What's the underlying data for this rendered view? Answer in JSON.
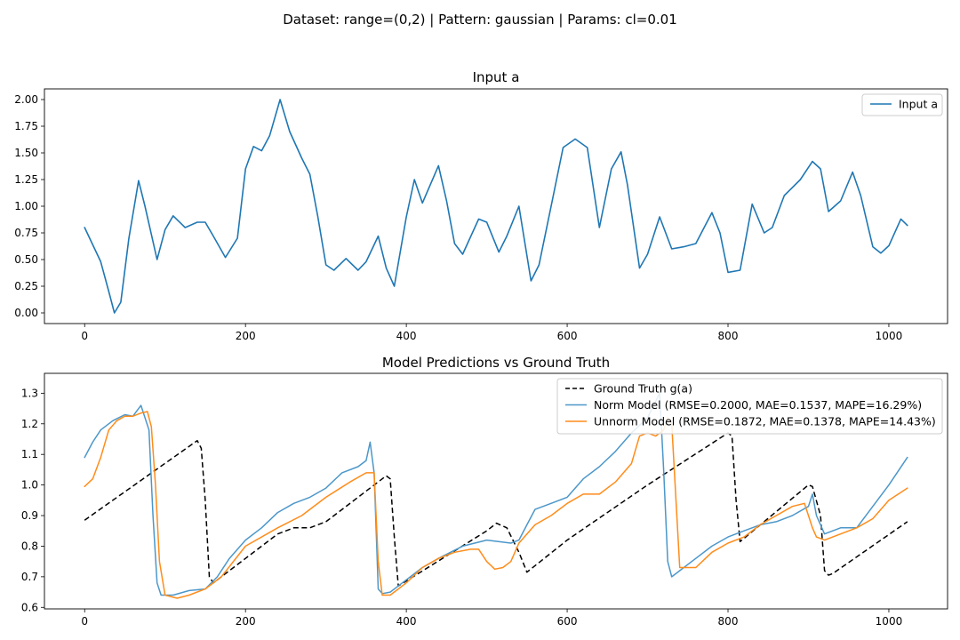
{
  "suptitle": "Dataset: range=(0,2) | Pattern: gaussian | Params: cl=0.01",
  "colors": {
    "blue": "#1f77b4",
    "steelblue": "#4c97c9",
    "orange": "#ff8c1a",
    "black": "#000000"
  },
  "chart_data": [
    {
      "type": "line",
      "title": "Input a",
      "xlabel": "",
      "ylabel": "",
      "xlim": [
        -50,
        1073
      ],
      "ylim": [
        -0.1,
        2.1
      ],
      "xticks": [
        0,
        200,
        400,
        600,
        800,
        1000
      ],
      "yticks": [
        "0.00",
        "0.25",
        "0.50",
        "0.75",
        "1.00",
        "1.25",
        "1.50",
        "1.75",
        "2.00"
      ],
      "legend": {
        "position": "top-right",
        "entries": [
          "Input a"
        ]
      },
      "series": [
        {
          "name": "Input a",
          "color": "#1f77b4",
          "style": "solid",
          "x": [
            0,
            20,
            30,
            37,
            45,
            55,
            67,
            75,
            90,
            100,
            110,
            125,
            140,
            150,
            160,
            175,
            190,
            200,
            210,
            220,
            230,
            243,
            255,
            270,
            280,
            290,
            300,
            310,
            325,
            340,
            350,
            365,
            375,
            385,
            400,
            410,
            420,
            440,
            450,
            460,
            470,
            490,
            500,
            515,
            525,
            540,
            555,
            565,
            580,
            595,
            610,
            625,
            640,
            655,
            667,
            675,
            690,
            700,
            715,
            730,
            745,
            760,
            780,
            790,
            800,
            815,
            830,
            845,
            855,
            870,
            890,
            905,
            915,
            925,
            940,
            955,
            965,
            980,
            990,
            1000,
            1015,
            1023
          ],
          "y": [
            0.8,
            0.48,
            0.2,
            0.0,
            0.1,
            0.7,
            1.24,
            1.0,
            0.5,
            0.78,
            0.91,
            0.8,
            0.85,
            0.85,
            0.72,
            0.52,
            0.7,
            1.35,
            1.56,
            1.52,
            1.66,
            2.0,
            1.7,
            1.45,
            1.3,
            0.9,
            0.45,
            0.4,
            0.51,
            0.4,
            0.48,
            0.72,
            0.42,
            0.25,
            0.9,
            1.25,
            1.03,
            1.38,
            1.05,
            0.65,
            0.55,
            0.88,
            0.85,
            0.57,
            0.72,
            1.0,
            0.3,
            0.45,
            1.0,
            1.55,
            1.63,
            1.55,
            0.8,
            1.35,
            1.51,
            1.2,
            0.42,
            0.55,
            0.9,
            0.6,
            0.62,
            0.65,
            0.94,
            0.75,
            0.38,
            0.4,
            1.02,
            0.75,
            0.8,
            1.1,
            1.25,
            1.42,
            1.35,
            0.95,
            1.05,
            1.32,
            1.1,
            0.62,
            0.56,
            0.63,
            0.88,
            0.82
          ]
        }
      ]
    },
    {
      "type": "line",
      "title": "Model Predictions vs Ground Truth",
      "xlabel": "",
      "ylabel": "",
      "xlim": [
        -50,
        1073
      ],
      "ylim": [
        0.595,
        1.365
      ],
      "xticks": [
        0,
        200,
        400,
        600,
        800,
        1000
      ],
      "yticks": [
        "0.6",
        "0.7",
        "0.8",
        "0.9",
        "1.0",
        "1.1",
        "1.2",
        "1.3"
      ],
      "legend": {
        "position": "top-right",
        "entries": [
          "Ground Truth g(a)",
          "Norm Model (RMSE=0.2000, MAE=0.1537, MAPE=16.29%)",
          "Unnorm Model (RMSE=0.1872, MAE=0.1378, MAPE=14.43%)"
        ]
      },
      "series": [
        {
          "name": "Ground Truth g(a)",
          "color": "#000000",
          "style": "dashed",
          "x": [
            0,
            140,
            145,
            150,
            155,
            160,
            200,
            240,
            260,
            280,
            300,
            375,
            380,
            385,
            390,
            500,
            512,
            525,
            540,
            550,
            600,
            700,
            800,
            805,
            810,
            815,
            900,
            905,
            915,
            920,
            925,
            930,
            1023
          ],
          "y": [
            0.885,
            1.145,
            1.12,
            0.95,
            0.7,
            0.68,
            0.76,
            0.84,
            0.86,
            0.86,
            0.88,
            1.03,
            1.02,
            0.83,
            0.67,
            0.85,
            0.875,
            0.86,
            0.78,
            0.715,
            0.82,
            1.0,
            1.17,
            1.16,
            0.95,
            0.815,
            1.0,
            0.995,
            0.9,
            0.72,
            0.705,
            0.71,
            0.88
          ]
        },
        {
          "name": "Norm Model (RMSE=0.2000, MAE=0.1537, MAPE=16.29%)",
          "color": "#4c97c9",
          "style": "solid",
          "x": [
            0,
            10,
            20,
            35,
            50,
            60,
            70,
            80,
            85,
            90,
            95,
            100,
            110,
            130,
            150,
            165,
            180,
            200,
            220,
            240,
            260,
            280,
            300,
            320,
            340,
            350,
            355,
            360,
            365,
            370,
            380,
            390,
            400,
            420,
            440,
            470,
            500,
            530,
            540,
            550,
            560,
            580,
            600,
            620,
            640,
            660,
            680,
            700,
            715,
            720,
            725,
            730,
            740,
            760,
            780,
            800,
            820,
            840,
            860,
            880,
            900,
            905,
            910,
            920,
            940,
            960,
            980,
            1000,
            1023
          ],
          "y": [
            1.09,
            1.14,
            1.18,
            1.21,
            1.23,
            1.225,
            1.26,
            1.18,
            0.9,
            0.68,
            0.64,
            0.64,
            0.64,
            0.655,
            0.66,
            0.7,
            0.76,
            0.82,
            0.86,
            0.91,
            0.94,
            0.96,
            0.99,
            1.04,
            1.06,
            1.08,
            1.14,
            1.04,
            0.66,
            0.645,
            0.65,
            0.67,
            0.69,
            0.73,
            0.76,
            0.8,
            0.82,
            0.81,
            0.82,
            0.87,
            0.92,
            0.94,
            0.96,
            1.02,
            1.06,
            1.11,
            1.17,
            1.22,
            1.3,
            1.05,
            0.75,
            0.7,
            0.72,
            0.76,
            0.8,
            0.83,
            0.85,
            0.87,
            0.88,
            0.9,
            0.93,
            0.97,
            0.9,
            0.84,
            0.86,
            0.86,
            0.93,
            1.0,
            1.09
          ]
        },
        {
          "name": "Unnorm Model (RMSE=0.1872, MAE=0.1378, MAPE=14.43%)",
          "color": "#ff8c1a",
          "style": "solid",
          "x": [
            0,
            10,
            20,
            30,
            40,
            50,
            60,
            70,
            78,
            83,
            88,
            93,
            100,
            115,
            130,
            150,
            170,
            200,
            240,
            270,
            300,
            330,
            350,
            360,
            365,
            370,
            380,
            390,
            400,
            420,
            440,
            460,
            480,
            490,
            500,
            510,
            520,
            530,
            540,
            560,
            580,
            600,
            620,
            640,
            660,
            680,
            690,
            700,
            710,
            720,
            725,
            730,
            740,
            760,
            780,
            800,
            820,
            840,
            860,
            880,
            895,
            900,
            905,
            910,
            920,
            940,
            960,
            980,
            1000,
            1023
          ],
          "y": [
            0.995,
            1.02,
            1.09,
            1.18,
            1.21,
            1.225,
            1.225,
            1.235,
            1.24,
            1.19,
            1.0,
            0.75,
            0.64,
            0.63,
            0.64,
            0.66,
            0.7,
            0.8,
            0.86,
            0.9,
            0.96,
            1.01,
            1.04,
            1.04,
            0.75,
            0.64,
            0.64,
            0.66,
            0.68,
            0.73,
            0.76,
            0.78,
            0.79,
            0.79,
            0.75,
            0.725,
            0.73,
            0.75,
            0.81,
            0.87,
            0.9,
            0.94,
            0.97,
            0.97,
            1.01,
            1.07,
            1.16,
            1.17,
            1.16,
            1.18,
            1.22,
            1.2,
            0.73,
            0.73,
            0.78,
            0.81,
            0.83,
            0.87,
            0.9,
            0.93,
            0.94,
            0.9,
            0.86,
            0.83,
            0.82,
            0.84,
            0.86,
            0.89,
            0.95,
            0.99
          ]
        }
      ]
    }
  ]
}
